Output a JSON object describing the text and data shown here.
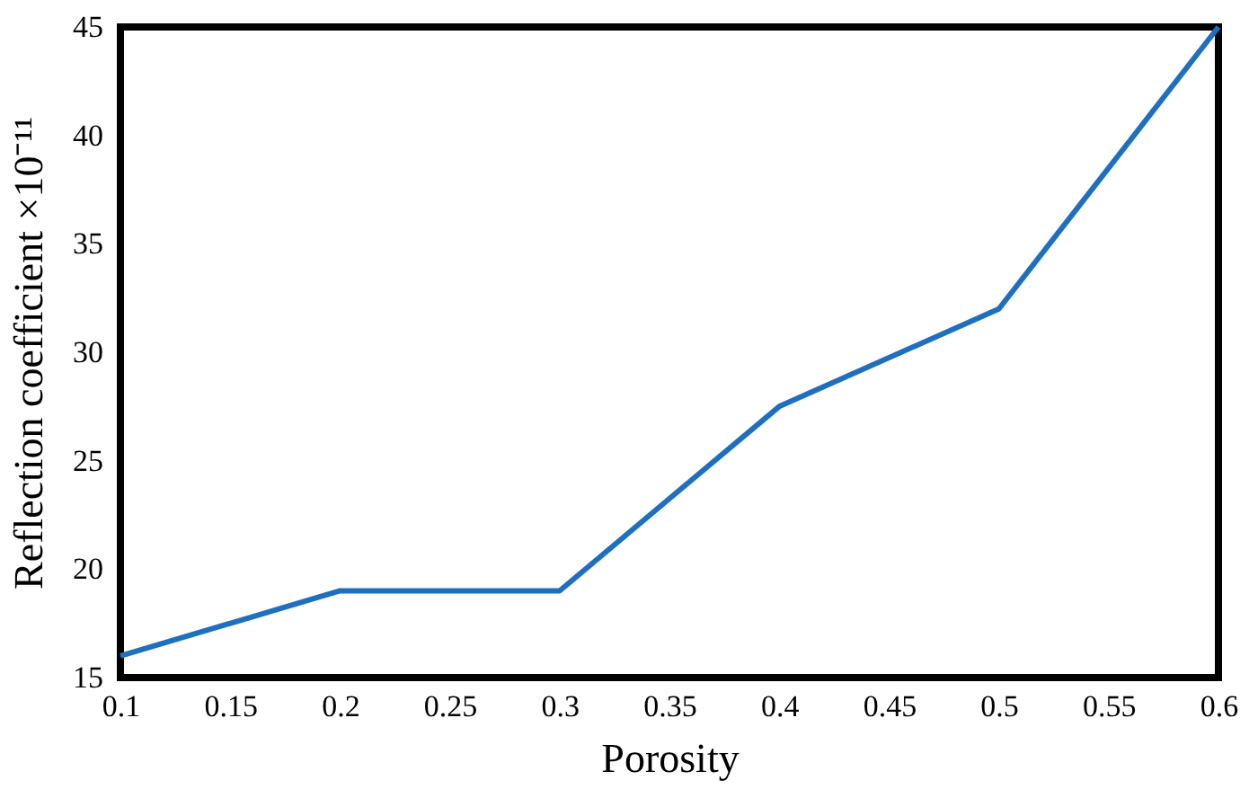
{
  "chart_data": {
    "type": "line",
    "xlabel": "Porosity",
    "ylabel": "Reflection coefficient ×10⁻¹¹",
    "x": [
      0.1,
      0.2,
      0.3,
      0.4,
      0.5,
      0.6
    ],
    "series": [
      {
        "color": "#1f6fc0",
        "values": [
          16,
          19,
          19,
          27.5,
          32,
          45
        ]
      }
    ],
    "xlim": [
      0.1,
      0.6
    ],
    "xticks": [
      0.1,
      0.15,
      0.2,
      0.25,
      0.3,
      0.35,
      0.4,
      0.45,
      0.5,
      0.55,
      0.6
    ],
    "ylim": [
      15,
      45
    ],
    "yticks": [
      15,
      20,
      25,
      30,
      35,
      40,
      45
    ],
    "grid": false,
    "legend": false,
    "marker": "none",
    "line_style": "solid"
  }
}
